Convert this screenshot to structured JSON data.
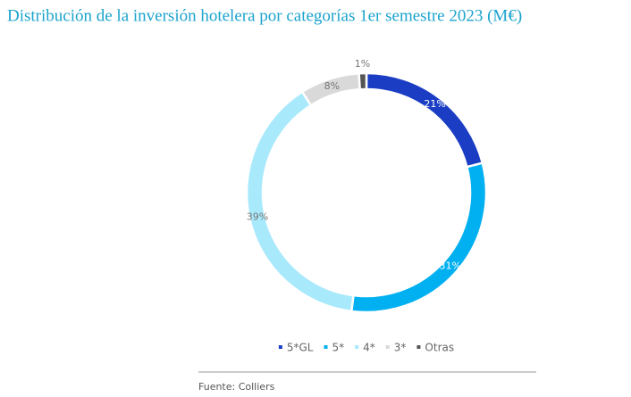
{
  "chart_data": {
    "type": "donut",
    "title": "Distribución de la inversión hotelera por categorías 1er semestre 2023 (M€)",
    "categories": [
      "5*GL",
      "5*",
      "4*",
      "3*",
      "Otras"
    ],
    "values": [
      21,
      31,
      39,
      8,
      1
    ],
    "value_labels": [
      "21%",
      "31%",
      "39%",
      "8%",
      "1%"
    ],
    "colors": [
      "#1a3dc4",
      "#00b0f0",
      "#a8e9fc",
      "#d9d9d9",
      "#555555"
    ],
    "legend": "bottom",
    "source": "Fuente: Colliers"
  }
}
